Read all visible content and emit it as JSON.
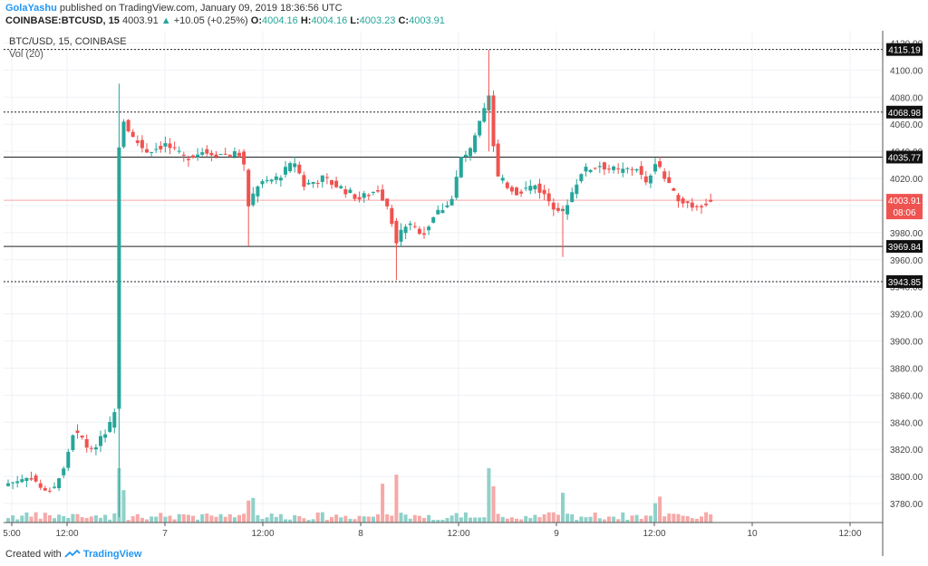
{
  "header": {
    "author": "GolaYashu",
    "published_text": "published on TradingView.com, January 09, 2019 18:36:56 UTC",
    "symbol": "COINBASE:BTCUSD, 15",
    "last": "4003.91",
    "change_arrow": "▲",
    "change": "+10.05 (+0.25%)",
    "o_label": "O:",
    "o_value": "4004.16",
    "h_label": "H:",
    "h_value": "4004.16",
    "l_label": "L:",
    "l_value": "4003.23",
    "c_label": "C:",
    "c_value": "4003.91"
  },
  "legend": {
    "title": "BTC/USD, 15, COINBASE",
    "volume": "Vol (20)"
  },
  "footer": {
    "created_with": "Created with",
    "brand": "TradingView"
  },
  "colors": {
    "up": "#26a69a",
    "down": "#ef5350",
    "up_volume": "#8fd1c9",
    "down_volume": "#f5a9a7",
    "grid": "#eef1f5",
    "hline": "#222222",
    "last_price": "#ef5350"
  },
  "chart_data": {
    "type": "candlestick",
    "title": "BTC/USD, 15, COINBASE",
    "x_tick_labels": [
      "5:00",
      "12:00",
      "7",
      "12:00",
      "8",
      "12:00",
      "9",
      "12:00",
      "10",
      "12:00"
    ],
    "y_tick_labels": [
      3780,
      3800,
      3820,
      3840,
      3860,
      3880,
      3900,
      3920,
      3940,
      3960,
      3980,
      4000,
      4020,
      4040,
      4060,
      4080,
      4100,
      4120
    ],
    "ylim": [
      3766,
      4129
    ],
    "grid": true,
    "horizontal_levels": [
      {
        "value": 4115.19,
        "label": "4115.19",
        "style": "dotted"
      },
      {
        "value": 4068.98,
        "label": "4068.98",
        "style": "dotted"
      },
      {
        "value": 4035.77,
        "label": "4035.77",
        "style": "solid"
      },
      {
        "value": 3969.84,
        "label": "3969.84",
        "style": "solid"
      },
      {
        "value": 3943.85,
        "label": "3943.85",
        "style": "dotted"
      }
    ],
    "last_price": {
      "value": 4003.91,
      "label": "4003.91",
      "countdown": "08:06"
    },
    "price_path": [
      [
        0,
        3795
      ],
      [
        5,
        3800
      ],
      [
        8,
        3788
      ],
      [
        10,
        3793
      ],
      [
        12,
        3805
      ],
      [
        14,
        3832
      ],
      [
        16,
        3828
      ],
      [
        18,
        3818
      ],
      [
        20,
        3830
      ],
      [
        22,
        3838
      ],
      [
        23,
        3850
      ],
      [
        24,
        4045
      ],
      [
        25,
        4062
      ],
      [
        27,
        4050
      ],
      [
        30,
        4040
      ],
      [
        34,
        4045
      ],
      [
        38,
        4035
      ],
      [
        42,
        4040
      ],
      [
        46,
        4038
      ],
      [
        50,
        4038
      ],
      [
        51,
        4028
      ],
      [
        52,
        4000
      ],
      [
        54,
        4015
      ],
      [
        58,
        4020
      ],
      [
        62,
        4032
      ],
      [
        64,
        4015
      ],
      [
        68,
        4020
      ],
      [
        72,
        4013
      ],
      [
        76,
        4005
      ],
      [
        80,
        4012
      ],
      [
        82,
        4000
      ],
      [
        84,
        3975
      ],
      [
        86,
        3986
      ],
      [
        90,
        3980
      ],
      [
        92,
        3992
      ],
      [
        96,
        4005
      ],
      [
        98,
        4035
      ],
      [
        100,
        4040
      ],
      [
        102,
        4060
      ],
      [
        104,
        4080
      ],
      [
        105,
        4045
      ],
      [
        106,
        4020
      ],
      [
        110,
        4010
      ],
      [
        114,
        4015
      ],
      [
        118,
        4000
      ],
      [
        120,
        3995
      ],
      [
        122,
        4010
      ],
      [
        124,
        4025
      ],
      [
        128,
        4030
      ],
      [
        132,
        4025
      ],
      [
        136,
        4028
      ],
      [
        138,
        4015
      ],
      [
        140,
        4033
      ],
      [
        142,
        4020
      ],
      [
        144,
        4008
      ],
      [
        148,
        4000
      ],
      [
        152,
        4003
      ]
    ],
    "volume_spikes": [
      {
        "i": 24,
        "value": 420
      },
      {
        "i": 25,
        "value": 250
      },
      {
        "i": 52,
        "value": 170
      },
      {
        "i": 53,
        "value": 190
      },
      {
        "i": 81,
        "value": 300
      },
      {
        "i": 84,
        "value": 370
      },
      {
        "i": 104,
        "value": 420
      },
      {
        "i": 105,
        "value": 280
      },
      {
        "i": 120,
        "value": 230
      },
      {
        "i": 141,
        "value": 200
      },
      {
        "i": 140,
        "value": 150
      }
    ]
  }
}
